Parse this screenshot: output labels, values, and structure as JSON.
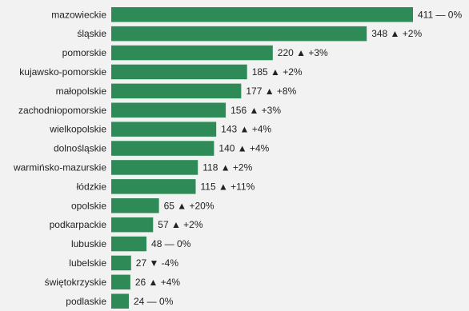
{
  "chart_data": {
    "type": "bar",
    "orientation": "horizontal",
    "bar_color": "#2e8b57",
    "background_color": "#f2f2f2",
    "title": "",
    "xlabel": "",
    "ylabel": "",
    "xlim": [
      0,
      411
    ],
    "grid": false,
    "legend": "none",
    "categories": [
      "mazowieckie",
      "śląskie",
      "pomorskie",
      "kujawsko-pomorskie",
      "małopolskie",
      "zachodniopomorskie",
      "wielkopolskie",
      "dolnośląskie",
      "warmińsko-mazurskie",
      "łódzkie",
      "opolskie",
      "podkarpackie",
      "lubuskie",
      "lubelskie",
      "świętokrzyskie",
      "podlaskie"
    ],
    "values": [
      411,
      348,
      220,
      185,
      177,
      156,
      143,
      140,
      118,
      115,
      65,
      57,
      48,
      27,
      26,
      24
    ],
    "value_labels": [
      "411 — 0%",
      "348 ▲ +2%",
      "220 ▲ +3%",
      "185 ▲ +2%",
      "177 ▲ +8%",
      "156 ▲ +3%",
      "143 ▲ +4%",
      "140 ▲ +4%",
      "118 ▲ +2%",
      "115 ▲ +11%",
      "65 ▲ +20%",
      "57 ▲ +2%",
      "48 — 0%",
      "27 ▼ -4%",
      "26 ▲ +4%",
      "24 — 0%"
    ]
  }
}
